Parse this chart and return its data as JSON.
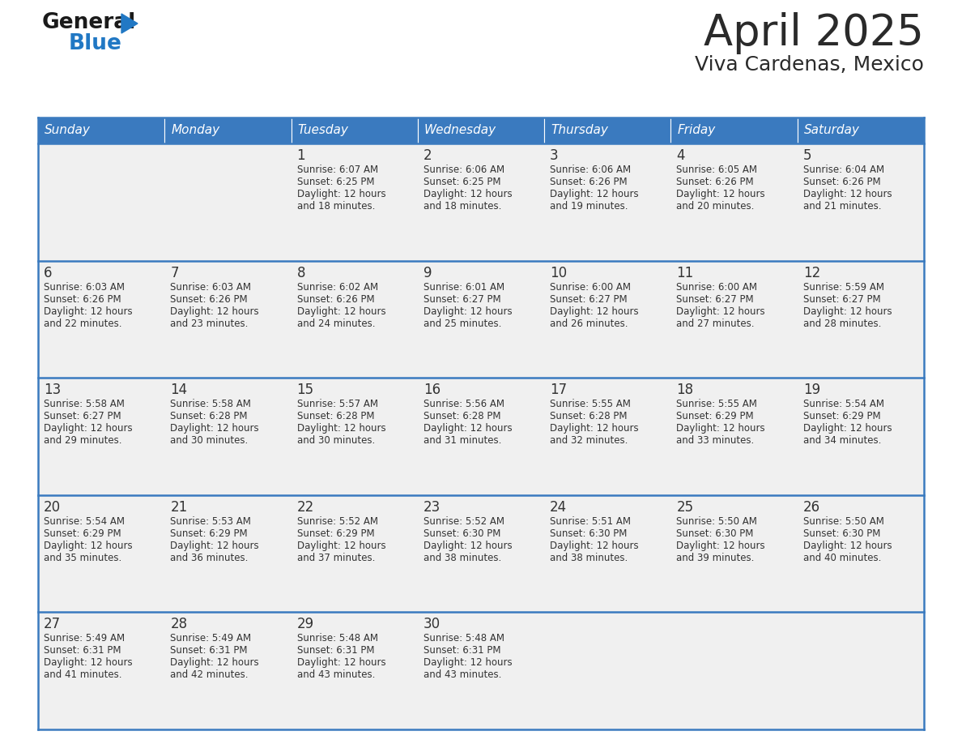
{
  "title": "April 2025",
  "subtitle": "Viva Cardenas, Mexico",
  "header_bg": "#3a7abf",
  "header_text": "#ffffff",
  "day_names": [
    "Sunday",
    "Monday",
    "Tuesday",
    "Wednesday",
    "Thursday",
    "Friday",
    "Saturday"
  ],
  "row_bg": "#f0f0f0",
  "cell_border": "#3a7abf",
  "text_color": "#333333",
  "days": [
    {
      "date": 1,
      "col": 2,
      "row": 0,
      "sunrise": "6:07 AM",
      "sunset": "6:25 PM",
      "daylight": "12 hours and 18 minutes."
    },
    {
      "date": 2,
      "col": 3,
      "row": 0,
      "sunrise": "6:06 AM",
      "sunset": "6:25 PM",
      "daylight": "12 hours and 18 minutes."
    },
    {
      "date": 3,
      "col": 4,
      "row": 0,
      "sunrise": "6:06 AM",
      "sunset": "6:26 PM",
      "daylight": "12 hours and 19 minutes."
    },
    {
      "date": 4,
      "col": 5,
      "row": 0,
      "sunrise": "6:05 AM",
      "sunset": "6:26 PM",
      "daylight": "12 hours and 20 minutes."
    },
    {
      "date": 5,
      "col": 6,
      "row": 0,
      "sunrise": "6:04 AM",
      "sunset": "6:26 PM",
      "daylight": "12 hours and 21 minutes."
    },
    {
      "date": 6,
      "col": 0,
      "row": 1,
      "sunrise": "6:03 AM",
      "sunset": "6:26 PM",
      "daylight": "12 hours and 22 minutes."
    },
    {
      "date": 7,
      "col": 1,
      "row": 1,
      "sunrise": "6:03 AM",
      "sunset": "6:26 PM",
      "daylight": "12 hours and 23 minutes."
    },
    {
      "date": 8,
      "col": 2,
      "row": 1,
      "sunrise": "6:02 AM",
      "sunset": "6:26 PM",
      "daylight": "12 hours and 24 minutes."
    },
    {
      "date": 9,
      "col": 3,
      "row": 1,
      "sunrise": "6:01 AM",
      "sunset": "6:27 PM",
      "daylight": "12 hours and 25 minutes."
    },
    {
      "date": 10,
      "col": 4,
      "row": 1,
      "sunrise": "6:00 AM",
      "sunset": "6:27 PM",
      "daylight": "12 hours and 26 minutes."
    },
    {
      "date": 11,
      "col": 5,
      "row": 1,
      "sunrise": "6:00 AM",
      "sunset": "6:27 PM",
      "daylight": "12 hours and 27 minutes."
    },
    {
      "date": 12,
      "col": 6,
      "row": 1,
      "sunrise": "5:59 AM",
      "sunset": "6:27 PM",
      "daylight": "12 hours and 28 minutes."
    },
    {
      "date": 13,
      "col": 0,
      "row": 2,
      "sunrise": "5:58 AM",
      "sunset": "6:27 PM",
      "daylight": "12 hours and 29 minutes."
    },
    {
      "date": 14,
      "col": 1,
      "row": 2,
      "sunrise": "5:58 AM",
      "sunset": "6:28 PM",
      "daylight": "12 hours and 30 minutes."
    },
    {
      "date": 15,
      "col": 2,
      "row": 2,
      "sunrise": "5:57 AM",
      "sunset": "6:28 PM",
      "daylight": "12 hours and 30 minutes."
    },
    {
      "date": 16,
      "col": 3,
      "row": 2,
      "sunrise": "5:56 AM",
      "sunset": "6:28 PM",
      "daylight": "12 hours and 31 minutes."
    },
    {
      "date": 17,
      "col": 4,
      "row": 2,
      "sunrise": "5:55 AM",
      "sunset": "6:28 PM",
      "daylight": "12 hours and 32 minutes."
    },
    {
      "date": 18,
      "col": 5,
      "row": 2,
      "sunrise": "5:55 AM",
      "sunset": "6:29 PM",
      "daylight": "12 hours and 33 minutes."
    },
    {
      "date": 19,
      "col": 6,
      "row": 2,
      "sunrise": "5:54 AM",
      "sunset": "6:29 PM",
      "daylight": "12 hours and 34 minutes."
    },
    {
      "date": 20,
      "col": 0,
      "row": 3,
      "sunrise": "5:54 AM",
      "sunset": "6:29 PM",
      "daylight": "12 hours and 35 minutes."
    },
    {
      "date": 21,
      "col": 1,
      "row": 3,
      "sunrise": "5:53 AM",
      "sunset": "6:29 PM",
      "daylight": "12 hours and 36 minutes."
    },
    {
      "date": 22,
      "col": 2,
      "row": 3,
      "sunrise": "5:52 AM",
      "sunset": "6:29 PM",
      "daylight": "12 hours and 37 minutes."
    },
    {
      "date": 23,
      "col": 3,
      "row": 3,
      "sunrise": "5:52 AM",
      "sunset": "6:30 PM",
      "daylight": "12 hours and 38 minutes."
    },
    {
      "date": 24,
      "col": 4,
      "row": 3,
      "sunrise": "5:51 AM",
      "sunset": "6:30 PM",
      "daylight": "12 hours and 38 minutes."
    },
    {
      "date": 25,
      "col": 5,
      "row": 3,
      "sunrise": "5:50 AM",
      "sunset": "6:30 PM",
      "daylight": "12 hours and 39 minutes."
    },
    {
      "date": 26,
      "col": 6,
      "row": 3,
      "sunrise": "5:50 AM",
      "sunset": "6:30 PM",
      "daylight": "12 hours and 40 minutes."
    },
    {
      "date": 27,
      "col": 0,
      "row": 4,
      "sunrise": "5:49 AM",
      "sunset": "6:31 PM",
      "daylight": "12 hours and 41 minutes."
    },
    {
      "date": 28,
      "col": 1,
      "row": 4,
      "sunrise": "5:49 AM",
      "sunset": "6:31 PM",
      "daylight": "12 hours and 42 minutes."
    },
    {
      "date": 29,
      "col": 2,
      "row": 4,
      "sunrise": "5:48 AM",
      "sunset": "6:31 PM",
      "daylight": "12 hours and 43 minutes."
    },
    {
      "date": 30,
      "col": 3,
      "row": 4,
      "sunrise": "5:48 AM",
      "sunset": "6:31 PM",
      "daylight": "12 hours and 43 minutes."
    }
  ],
  "logo_general_color": "#1a1a1a",
  "logo_blue_color": "#2178c4",
  "logo_triangle_color": "#2178c4"
}
